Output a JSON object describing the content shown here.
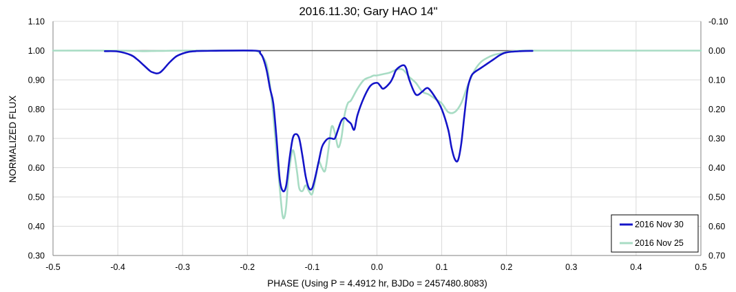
{
  "chart_data": {
    "type": "line",
    "title": "2016.11.30; Gary HAO 14\"",
    "xlabel": "PHASE (Using P = 4.4912 hr, BJDo = 2457480.8083)",
    "ylabel": "NORMALIZED FLUX",
    "xlim": [
      -0.5,
      0.5
    ],
    "ylim": [
      0.3,
      1.1
    ],
    "y2lim": [
      -0.1,
      0.7
    ],
    "y2_inverted": true,
    "x_ticks": [
      "-0.5",
      "-0.4",
      "-0.3",
      "-0.2",
      "-0.1",
      "0.0",
      "0.1",
      "0.2",
      "0.3",
      "0.4",
      "0.5"
    ],
    "x_tick_values": [
      -0.5,
      -0.4,
      -0.3,
      -0.2,
      -0.1,
      0.0,
      0.1,
      0.2,
      0.3,
      0.4,
      0.5
    ],
    "y_ticks": [
      "0.30",
      "0.40",
      "0.50",
      "0.60",
      "0.70",
      "0.80",
      "0.90",
      "1.00",
      "1.10"
    ],
    "y_tick_values": [
      0.3,
      0.4,
      0.5,
      0.6,
      0.7,
      0.8,
      0.9,
      1.0,
      1.1
    ],
    "y2_ticks": [
      "0.70",
      "0.60",
      "0.50",
      "0.40",
      "0.30",
      "0.20",
      "0.10",
      "0.00",
      "-0.10"
    ],
    "grid": true,
    "reference_line": 1.0,
    "legend_position": "bottom-right",
    "series": [
      {
        "name": "2016 Nov 25",
        "color": "#a8dcc4",
        "x": [
          -0.5,
          -0.4,
          -0.37,
          -0.36,
          -0.34,
          -0.33,
          -0.32,
          -0.3,
          -0.28,
          -0.2,
          -0.185,
          -0.18,
          -0.175,
          -0.17,
          -0.165,
          -0.16,
          -0.155,
          -0.15,
          -0.146,
          -0.143,
          -0.14,
          -0.137,
          -0.133,
          -0.13,
          -0.127,
          -0.123,
          -0.12,
          -0.115,
          -0.11,
          -0.105,
          -0.1,
          -0.095,
          -0.09,
          -0.085,
          -0.08,
          -0.075,
          -0.07,
          -0.065,
          -0.06,
          -0.055,
          -0.05,
          -0.045,
          -0.04,
          -0.03,
          -0.02,
          -0.01,
          -0.005,
          0.0,
          0.01,
          0.02,
          0.03,
          0.04,
          0.05,
          0.06,
          0.07,
          0.08,
          0.09,
          0.1,
          0.11,
          0.12,
          0.13,
          0.14,
          0.15,
          0.16,
          0.17,
          0.18,
          0.19,
          0.2,
          0.21,
          0.22,
          0.25,
          0.3,
          0.5
        ],
        "y": [
          1.0,
          1.0,
          0.999,
          0.998,
          0.999,
          0.999,
          0.9995,
          1.0,
          1.0,
          1.0,
          0.998,
          0.99,
          0.975,
          0.95,
          0.88,
          0.78,
          0.65,
          0.53,
          0.44,
          0.43,
          0.47,
          0.56,
          0.63,
          0.66,
          0.64,
          0.58,
          0.53,
          0.52,
          0.54,
          0.52,
          0.51,
          0.56,
          0.62,
          0.6,
          0.59,
          0.66,
          0.74,
          0.72,
          0.67,
          0.7,
          0.78,
          0.82,
          0.83,
          0.87,
          0.9,
          0.91,
          0.915,
          0.915,
          0.92,
          0.925,
          0.935,
          0.935,
          0.91,
          0.89,
          0.86,
          0.85,
          0.835,
          0.82,
          0.79,
          0.79,
          0.82,
          0.88,
          0.93,
          0.96,
          0.975,
          0.985,
          0.99,
          0.995,
          0.998,
          1.0,
          1.0,
          1.0,
          1.0
        ]
      },
      {
        "name": "2016 Nov 30",
        "color": "#1414c8",
        "x": [
          -0.42,
          -0.4,
          -0.38,
          -0.37,
          -0.36,
          -0.35,
          -0.345,
          -0.34,
          -0.335,
          -0.33,
          -0.32,
          -0.31,
          -0.3,
          -0.29,
          -0.28,
          -0.27,
          -0.19,
          -0.18,
          -0.175,
          -0.17,
          -0.165,
          -0.16,
          -0.155,
          -0.15,
          -0.145,
          -0.14,
          -0.135,
          -0.13,
          -0.125,
          -0.12,
          -0.115,
          -0.11,
          -0.105,
          -0.1,
          -0.095,
          -0.09,
          -0.085,
          -0.08,
          -0.075,
          -0.07,
          -0.065,
          -0.06,
          -0.055,
          -0.05,
          -0.045,
          -0.04,
          -0.035,
          -0.03,
          -0.02,
          -0.01,
          0.0,
          0.005,
          0.01,
          0.02,
          0.025,
          0.03,
          0.04,
          0.045,
          0.05,
          0.06,
          0.07,
          0.075,
          0.08,
          0.09,
          0.1,
          0.11,
          0.115,
          0.12,
          0.125,
          0.13,
          0.135,
          0.14,
          0.145,
          0.15,
          0.16,
          0.17,
          0.18,
          0.19,
          0.2,
          0.22,
          0.24
        ],
        "y": [
          0.998,
          0.997,
          0.985,
          0.97,
          0.95,
          0.93,
          0.925,
          0.922,
          0.925,
          0.935,
          0.96,
          0.98,
          0.99,
          0.996,
          0.998,
          0.999,
          1.0,
          0.99,
          0.97,
          0.93,
          0.87,
          0.82,
          0.7,
          0.56,
          0.52,
          0.54,
          0.63,
          0.7,
          0.715,
          0.7,
          0.64,
          0.57,
          0.53,
          0.53,
          0.57,
          0.62,
          0.67,
          0.69,
          0.7,
          0.7,
          0.7,
          0.73,
          0.76,
          0.77,
          0.76,
          0.75,
          0.73,
          0.78,
          0.84,
          0.88,
          0.89,
          0.88,
          0.87,
          0.89,
          0.91,
          0.935,
          0.95,
          0.94,
          0.9,
          0.85,
          0.86,
          0.87,
          0.87,
          0.84,
          0.8,
          0.73,
          0.67,
          0.63,
          0.625,
          0.68,
          0.78,
          0.87,
          0.91,
          0.925,
          0.94,
          0.955,
          0.97,
          0.985,
          0.994,
          0.998,
          0.999
        ]
      }
    ]
  }
}
